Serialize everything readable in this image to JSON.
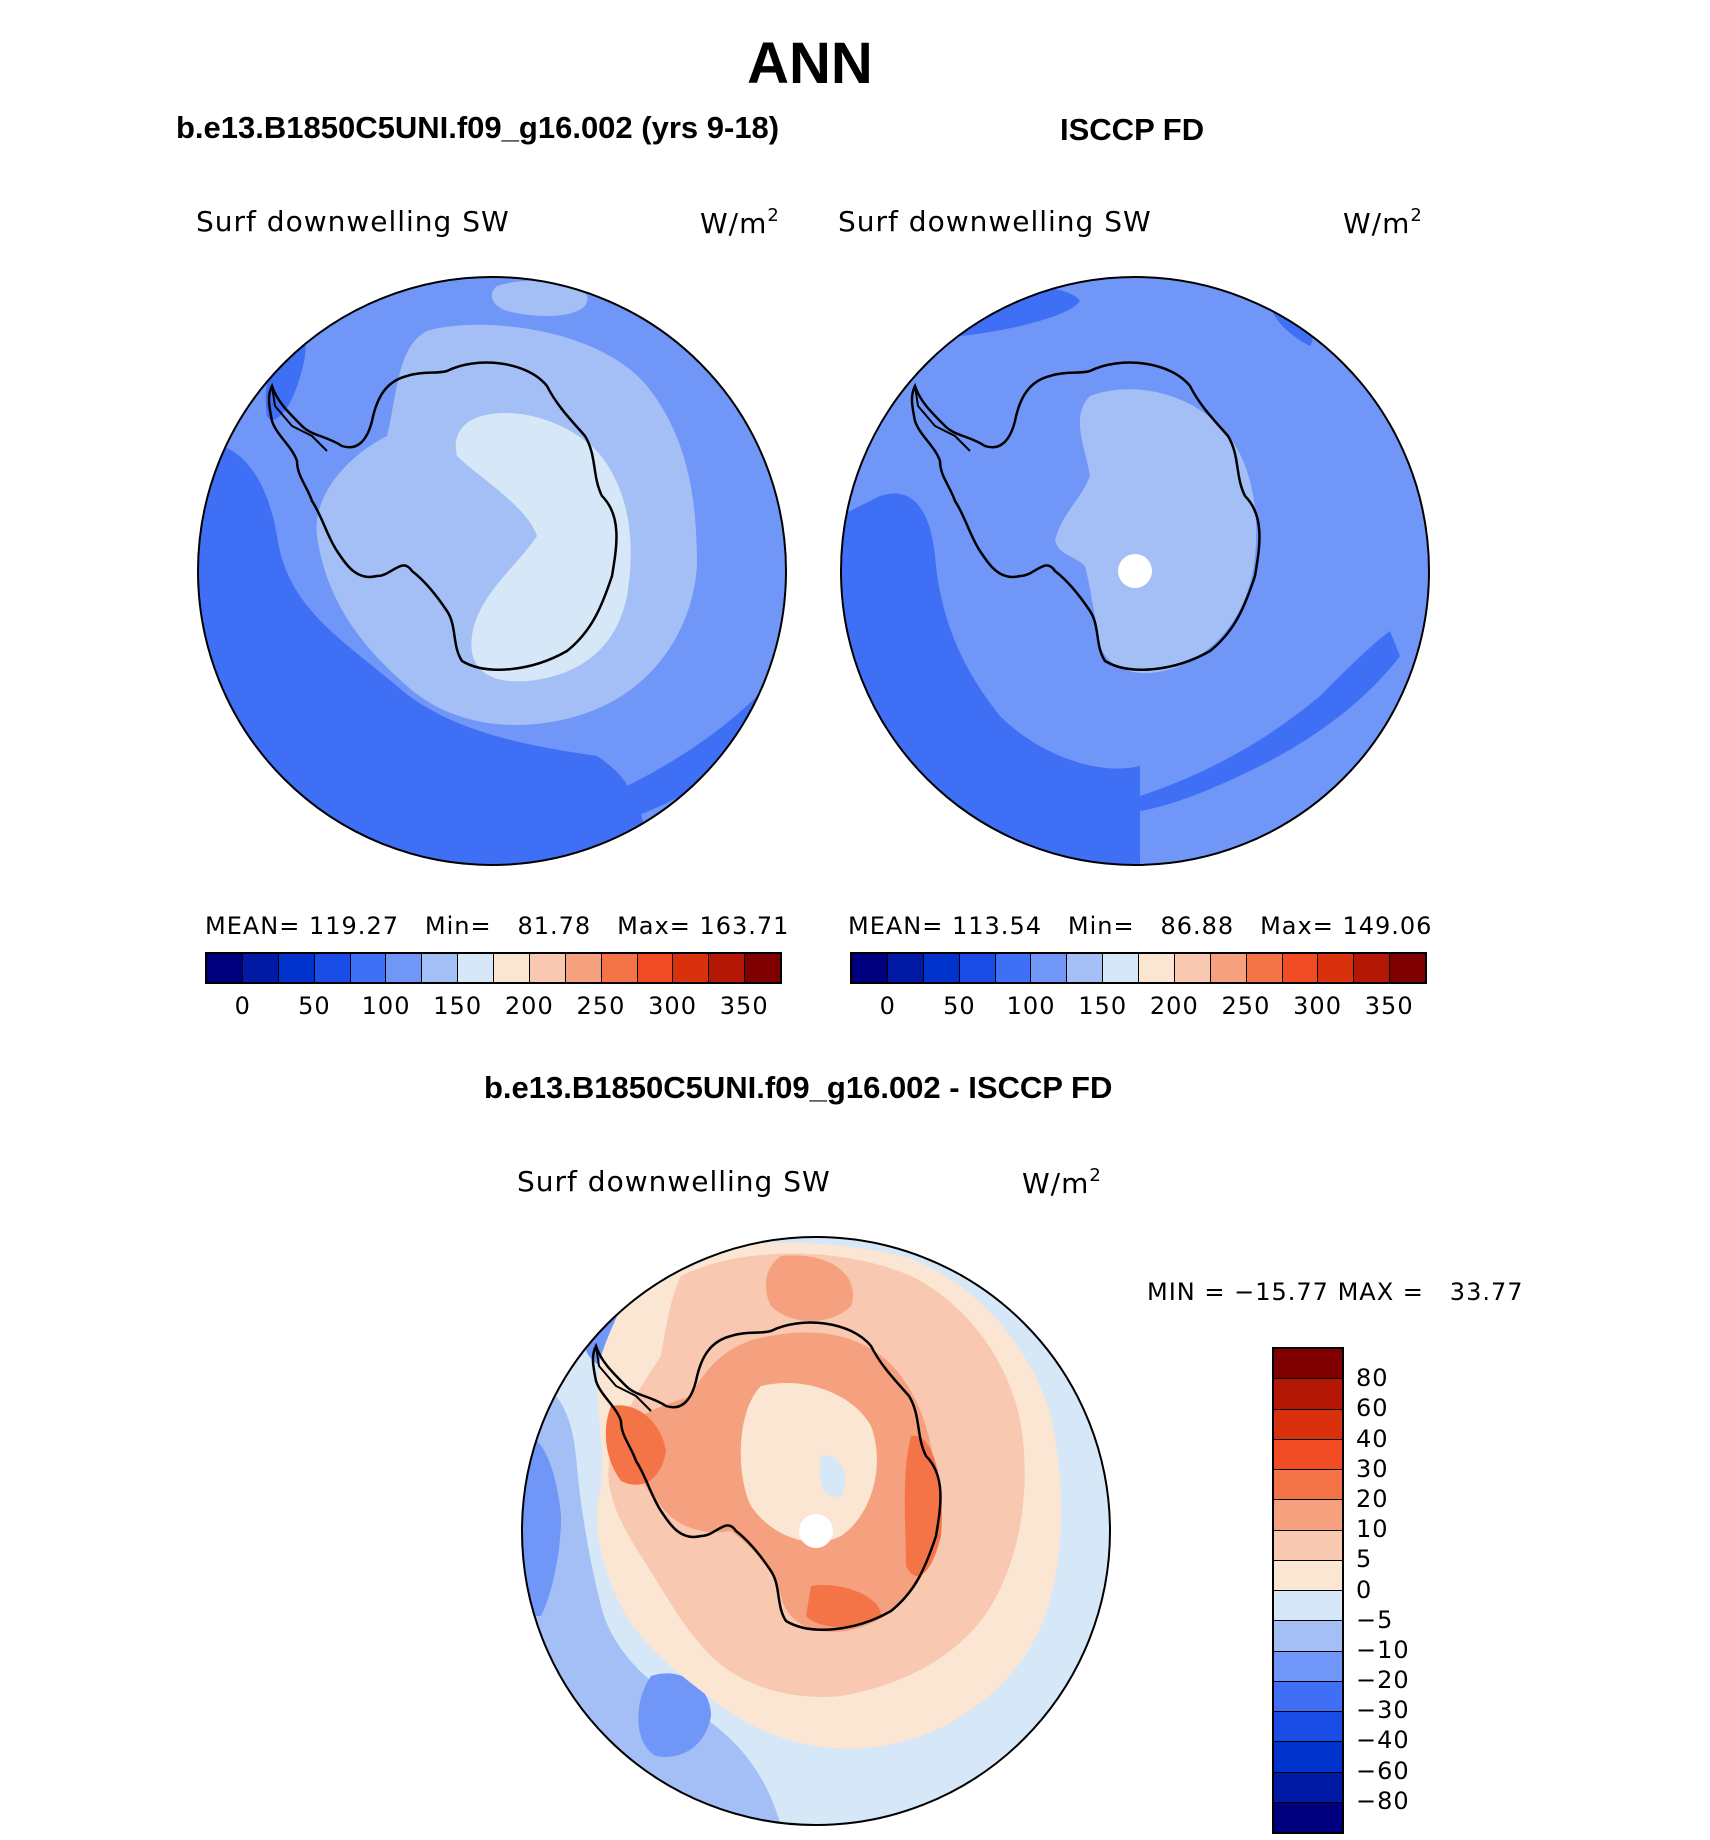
{
  "title": "ANN",
  "panels": {
    "left": {
      "subtitle": "b.e13.B1850C5UNI.f09_g16.002 (yrs 9-18)",
      "variable": "Surf downwelling SW",
      "units": "W/m",
      "units_sup": "2",
      "mean_label": "MEAN=",
      "mean": "119.27",
      "min_label": "Min=",
      "min": "81.78",
      "max_label": "Max=",
      "max": "163.71"
    },
    "right": {
      "subtitle": "ISCCP FD",
      "variable": "Surf downwelling SW",
      "units": "W/m",
      "units_sup": "2",
      "mean_label": "MEAN=",
      "mean": "113.54",
      "min_label": "Min=",
      "min": "86.88",
      "max_label": "Max=",
      "max": "149.06"
    },
    "diff": {
      "subtitle": "b.e13.B1850C5UNI.f09_g16.002 - ISCCP FD",
      "variable": "Surf downwelling SW",
      "units": "W/m",
      "units_sup": "2",
      "min_label": "MIN =",
      "min": "−15.77",
      "max_label": "MAX =",
      "max": "33.77"
    }
  },
  "colorbar_h": {
    "ticks": [
      "0",
      "50",
      "100",
      "150",
      "200",
      "250",
      "300",
      "350"
    ],
    "colors": [
      "#00007f",
      "#001aa6",
      "#0033cc",
      "#1a4de6",
      "#3f6ff5",
      "#7096f8",
      "#a3bff5",
      "#d6e7f8",
      "#fbe6d4",
      "#f8c8b0",
      "#f5a07e",
      "#f47448",
      "#f04b23",
      "#d9300e",
      "#b41706",
      "#7f0000"
    ]
  },
  "colorbar_v": {
    "ticks": [
      "80",
      "60",
      "40",
      "30",
      "20",
      "10",
      "5",
      "0",
      "−5",
      "−10",
      "−20",
      "−30",
      "−40",
      "−60",
      "−80"
    ],
    "colors": [
      "#7f0000",
      "#b41706",
      "#d9300e",
      "#f04b23",
      "#f47448",
      "#f5a07e",
      "#f8c8b0",
      "#fbe6d4",
      "#d6e7f8",
      "#a3bff5",
      "#7096f8",
      "#3f6ff5",
      "#1a4de6",
      "#0033cc",
      "#001aa6",
      "#00007f"
    ]
  }
}
